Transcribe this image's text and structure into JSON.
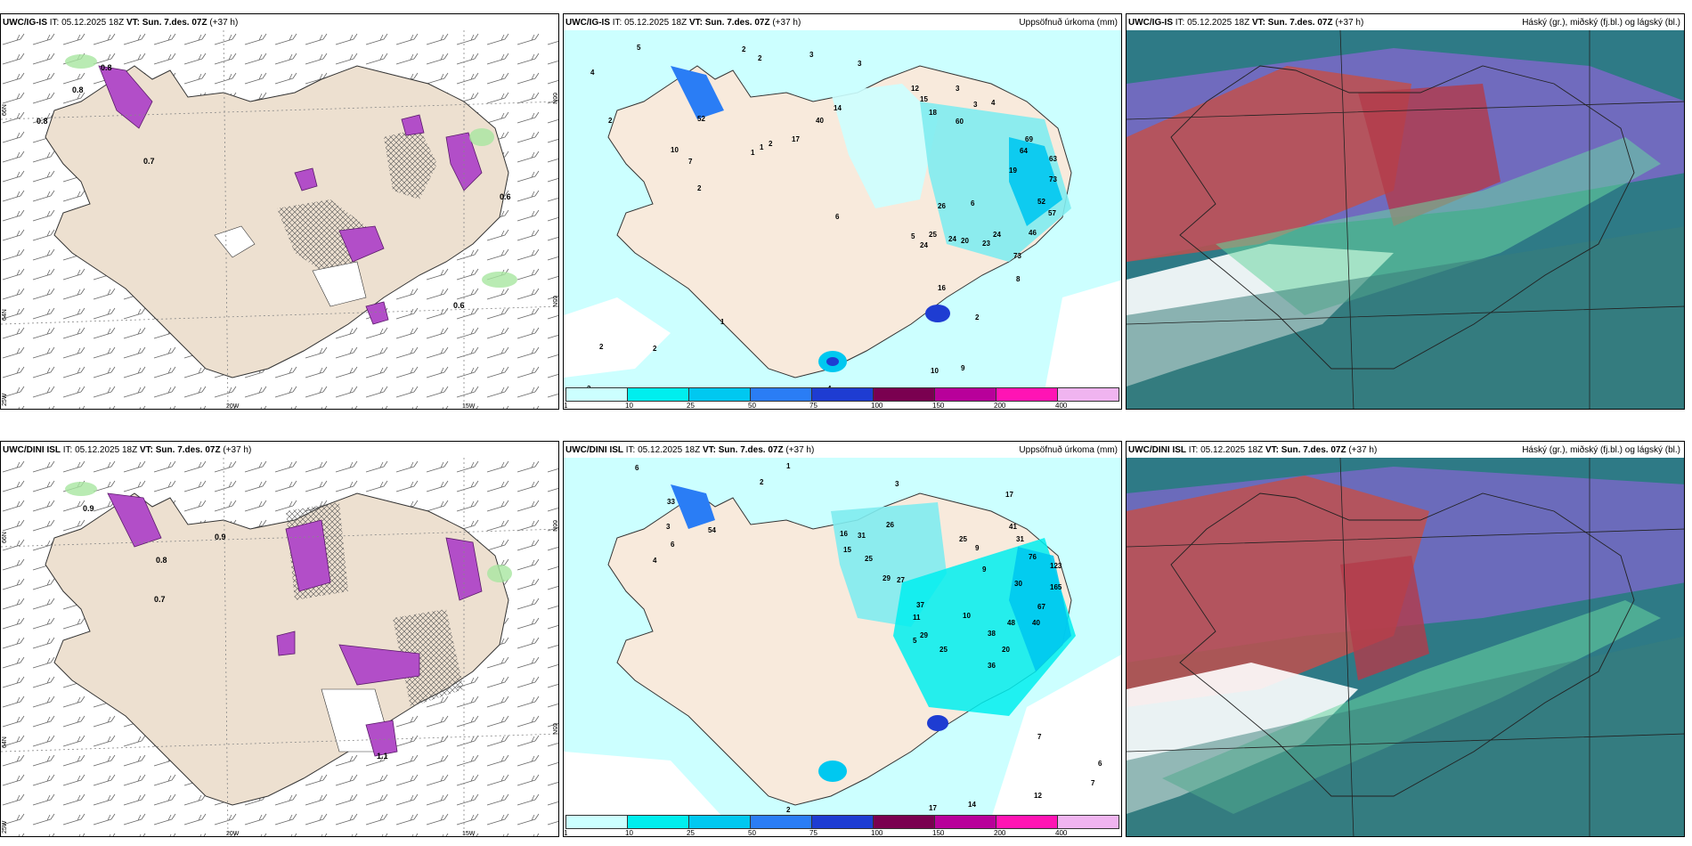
{
  "header": {
    "issue_label": "IT:",
    "issue_time": "05.12.2025 18Z",
    "valid_label": "VT:",
    "valid_time": "Sun. 7.des. 07Z",
    "lead": "(+37 h)"
  },
  "rows": [
    {
      "model": "UWC/IG-IS"
    },
    {
      "model": "UWC/DINI ISL"
    }
  ],
  "panel_titles": {
    "precip": "Uppsöfnuð úrkoma (mm)",
    "clouds": "Háský (gr.), miðský (fj.bl.) og lágský (bl.)"
  },
  "legend": {
    "ticks": [
      "1",
      "10",
      "25",
      "50",
      "75",
      "100",
      "150",
      "200",
      "400"
    ],
    "colors": [
      "#ccffff",
      "#00eeee",
      "#00c8f0",
      "#2a7df5",
      "#1e3cd2",
      "#7a0050",
      "#b8009a",
      "#ff14b4",
      "#f0b4f0"
    ]
  },
  "axes": {
    "lon": [
      "20W",
      "15W"
    ],
    "lat": [
      "66N",
      "64N",
      "25W"
    ],
    "lat_right": [
      "66N",
      "65N"
    ]
  },
  "top_precip_labels": [
    "5",
    "2",
    "2",
    "3",
    "4",
    "2",
    "3",
    "12",
    "3",
    "3",
    "4",
    "52",
    "10",
    "7",
    "2",
    "1",
    "2",
    "17",
    "40",
    "14",
    "15",
    "18",
    "60",
    "69",
    "64",
    "63",
    "19",
    "73",
    "52",
    "57",
    "46",
    "26",
    "6",
    "25",
    "24",
    "20",
    "23",
    "24",
    "73",
    "5",
    "16",
    "24",
    "8",
    "1",
    "2",
    "6",
    "10",
    "9",
    "4",
    "2",
    "2",
    "2",
    "1"
  ],
  "bottom_precip_labels": [
    "6",
    "1",
    "2",
    "3",
    "3",
    "6",
    "33",
    "54",
    "4",
    "16",
    "31",
    "26",
    "25",
    "29",
    "27",
    "17",
    "15",
    "25",
    "9",
    "31",
    "41",
    "76",
    "30",
    "123",
    "165",
    "67",
    "40",
    "48",
    "37",
    "29",
    "10",
    "25",
    "38",
    "5",
    "20",
    "36",
    "11",
    "9",
    "7",
    "17",
    "14",
    "12",
    "2",
    "6",
    "7"
  ],
  "top_snow_labels": [
    "0.8",
    "0.8",
    "0.8",
    "0.6",
    "0.7",
    "0.6"
  ],
  "bottom_snow_labels": [
    "0.9",
    "0.7",
    "0.9",
    "0.8",
    "1.1"
  ]
}
